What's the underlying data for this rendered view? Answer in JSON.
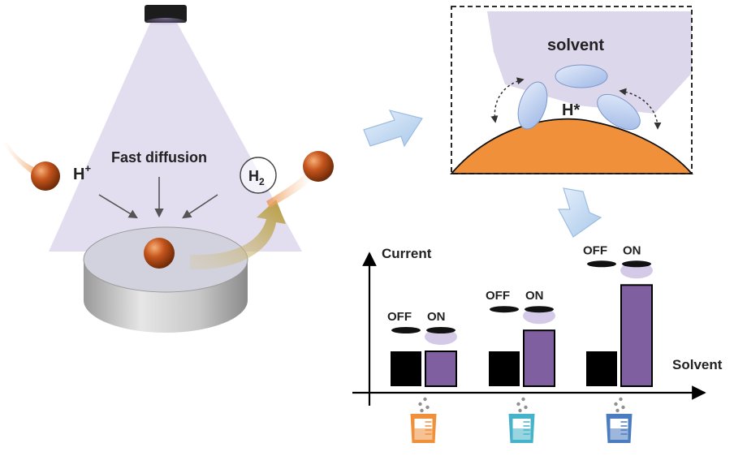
{
  "left_scene": {
    "diffusion_label": "Fast diffusion",
    "proton_label": "H",
    "proton_charge": "+",
    "hydrogen_label": "H",
    "hydrogen_subscript": "2"
  },
  "inset": {
    "solvent_label": "solvent",
    "adsorbed_h_label": "H*"
  },
  "chart_data": {
    "type": "bar",
    "ylabel": "Current",
    "xlabel": "Solvent",
    "categories": [
      "",
      "",
      ""
    ],
    "series": [
      {
        "name": "OFF",
        "values": [
          1.0,
          1.0,
          1.0
        ]
      },
      {
        "name": "ON",
        "values": [
          1.0,
          1.6,
          2.9
        ]
      }
    ],
    "ylim": [
      0,
      4.2
    ],
    "group_labels": [
      {
        "off": "OFF",
        "on": "ON"
      },
      {
        "off": "OFF",
        "on": "ON"
      },
      {
        "off": "OFF",
        "on": "ON"
      }
    ],
    "category_icons": [
      "orange-beaker",
      "teal-beaker",
      "blue-beaker"
    ]
  },
  "colors": {
    "light_cone": "#ddd7ec",
    "particle": "#c4541c",
    "bar_off": "#000000",
    "bar_on": "#7f5f9f",
    "electrode_orange": "#f0903a",
    "ellipse_blue": "#b9cdee",
    "beaker_orange": "#f0903a",
    "beaker_teal": "#45b3c9",
    "beaker_blue": "#4c7cc0"
  }
}
